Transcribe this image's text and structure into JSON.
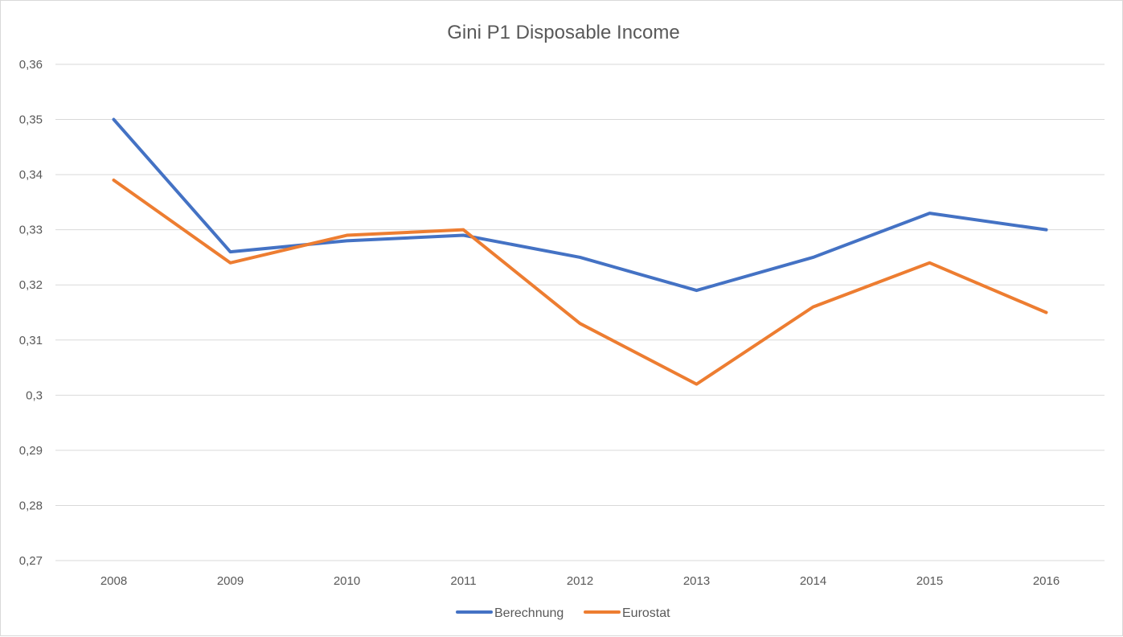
{
  "chart_data": {
    "type": "line",
    "title": "Gini P1 Disposable Income",
    "xlabel": "",
    "ylabel": "",
    "categories": [
      "2008",
      "2009",
      "2010",
      "2011",
      "2012",
      "2013",
      "2014",
      "2015",
      "2016"
    ],
    "series": [
      {
        "name": "Berechnung",
        "color": "#4472c4",
        "values": [
          0.35,
          0.326,
          0.328,
          0.329,
          0.325,
          0.319,
          0.325,
          0.333,
          0.33
        ]
      },
      {
        "name": "Eurostat",
        "color": "#ed7d31",
        "values": [
          0.339,
          0.324,
          0.329,
          0.33,
          0.313,
          0.302,
          0.316,
          0.324,
          0.315
        ]
      }
    ],
    "ylim": [
      0.27,
      0.36
    ],
    "yticks": [
      0.27,
      0.28,
      0.29,
      0.3,
      0.31,
      0.32,
      0.33,
      0.34,
      0.35,
      0.36
    ],
    "ytick_labels": [
      "0,27",
      "0,28",
      "0,29",
      "0,3",
      "0,31",
      "0,32",
      "0,33",
      "0,34",
      "0,35",
      "0,36"
    ],
    "grid": true,
    "legend": "bottom"
  }
}
